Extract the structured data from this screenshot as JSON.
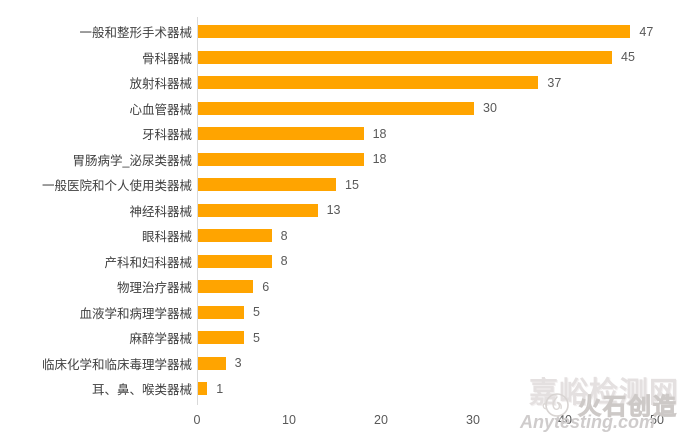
{
  "chart_data": {
    "type": "bar",
    "orientation": "horizontal",
    "title": "",
    "categories": [
      "一般和整形手术器械",
      "骨科器械",
      "放射科器械",
      "心血管器械",
      "牙科器械",
      "胃肠病学_泌尿类器械",
      "一般医院和个人使用类器械",
      "神经科器械",
      "眼科器械",
      "产科和妇科器械",
      "物理治疗器械",
      "血液学和病理学器械",
      "麻醉学器械",
      "临床化学和临床毒理学器械",
      "耳、鼻、喉类器械"
    ],
    "values": [
      47,
      45,
      37,
      30,
      18,
      18,
      15,
      13,
      8,
      8,
      6,
      5,
      5,
      3,
      1
    ],
    "value_labels_shown": true,
    "xlim": [
      0,
      50
    ],
    "x_ticks": [
      0,
      10,
      20,
      30,
      40,
      50
    ],
    "grid": false,
    "legend": false,
    "bar_color": "#FFA400"
  },
  "watermarks": {
    "site": "嘉峪检测网",
    "url": "Anytesting.com",
    "brand": "火石创造"
  },
  "colors": {
    "bar": "#FFA400",
    "category_label": "#404040",
    "value_label": "#595959",
    "tick_label": "#595959",
    "axis_line": "#D9D9D9",
    "watermark_site": "#E4E0E0",
    "watermark_url": "#CFCCCC",
    "watermark_brand_stroke": "#CDC9C7"
  }
}
